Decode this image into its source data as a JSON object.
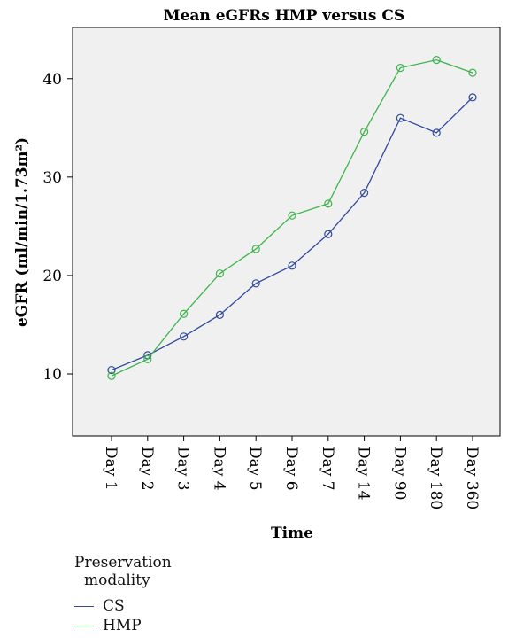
{
  "chart_data": {
    "type": "line",
    "title": "Mean eGFRs HMP versus CS",
    "xlabel": "Time",
    "ylabel": "eGFR (ml/min/1.73m²)",
    "ylim": [
      3.7,
      45.2
    ],
    "yticks": [
      10,
      20,
      30,
      40
    ],
    "categories": [
      "Day 1",
      "Day 2",
      "Day 3",
      "Day 4",
      "Day 5",
      "Day 6",
      "Day 7",
      "Day 14",
      "Day 90",
      "Day 180",
      "Day 360"
    ],
    "series": [
      {
        "name": "CS",
        "color": "#2f4a9e",
        "values": [
          10.4,
          11.9,
          13.8,
          16.0,
          19.2,
          21.0,
          24.2,
          28.4,
          36.0,
          34.5,
          38.1
        ]
      },
      {
        "name": "HMP",
        "color": "#3cb44b",
        "values": [
          9.8,
          11.5,
          16.1,
          20.2,
          22.7,
          26.1,
          27.3,
          34.6,
          41.1,
          41.9,
          40.6
        ]
      }
    ],
    "grid": false,
    "legend": {
      "title_line1": "Preservation",
      "title_line2": "modality",
      "placement": "bottom-left"
    }
  }
}
